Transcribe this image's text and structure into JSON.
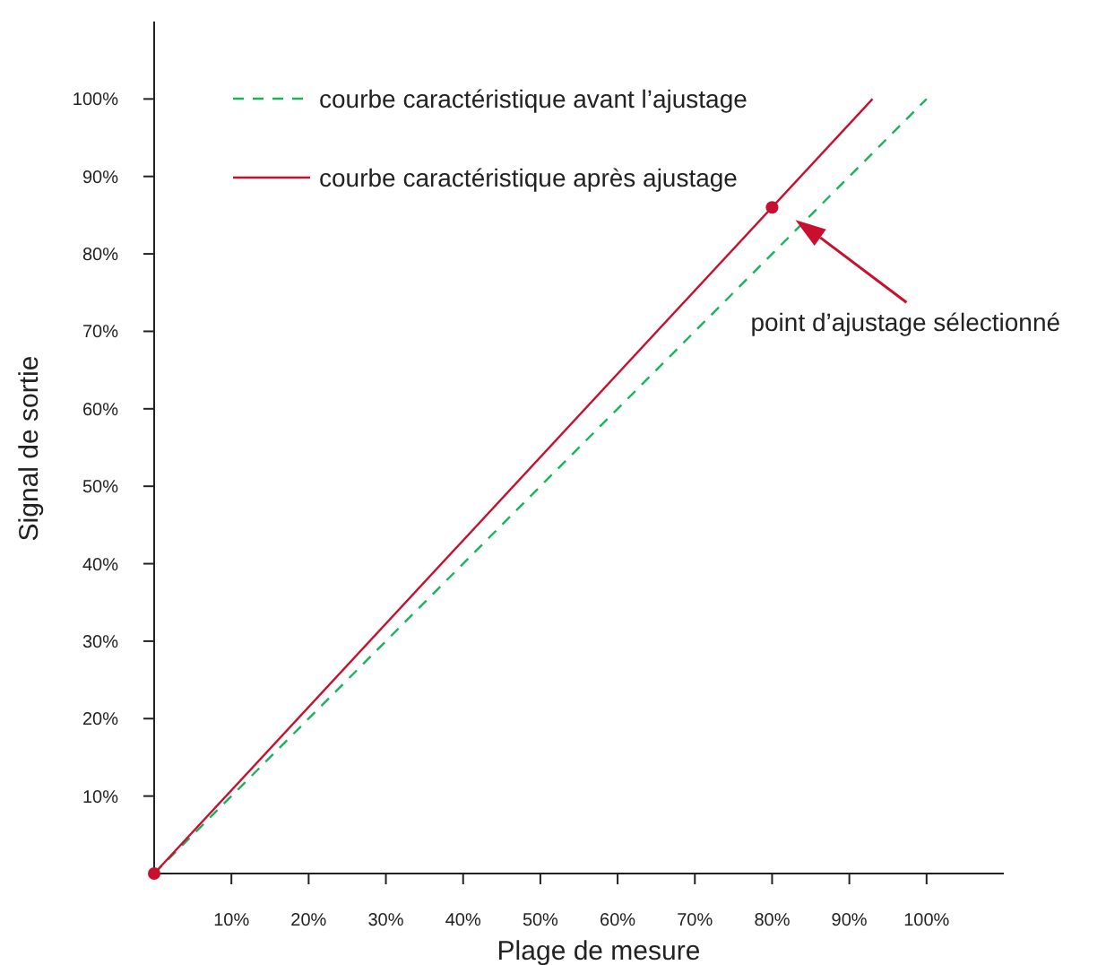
{
  "chart_data": {
    "type": "line",
    "xlabel": "Plage de mesure",
    "ylabel": "Signal de sortie",
    "xlim": [
      0,
      110
    ],
    "ylim": [
      0,
      110
    ],
    "xticks": [
      {
        "value": 10,
        "label": "10%"
      },
      {
        "value": 20,
        "label": "20%"
      },
      {
        "value": 30,
        "label": "30%"
      },
      {
        "value": 40,
        "label": "40%"
      },
      {
        "value": 50,
        "label": "50%"
      },
      {
        "value": 60,
        "label": "60%"
      },
      {
        "value": 70,
        "label": "70%"
      },
      {
        "value": 80,
        "label": "80%"
      },
      {
        "value": 90,
        "label": "90%"
      },
      {
        "value": 100,
        "label": "100%"
      }
    ],
    "yticks": [
      {
        "value": 10,
        "label": "10%"
      },
      {
        "value": 20,
        "label": "20%"
      },
      {
        "value": 30,
        "label": "30%"
      },
      {
        "value": 40,
        "label": "40%"
      },
      {
        "value": 50,
        "label": "50%"
      },
      {
        "value": 60,
        "label": "60%"
      },
      {
        "value": 70,
        "label": "70%"
      },
      {
        "value": 80,
        "label": "80%"
      },
      {
        "value": 90,
        "label": "90%"
      },
      {
        "value": 100,
        "label": "100%"
      }
    ],
    "grid": false,
    "legend": "top left",
    "series": [
      {
        "name": "courbe caractéristique avant l’ajustage",
        "color": "#19b35a",
        "x": [
          0,
          100
        ],
        "values": [
          0,
          100
        ],
        "line_style": "dashed",
        "marker": "none"
      },
      {
        "name": "courbe caractéristique après ajustage",
        "color": "#c8102e",
        "x": [
          0,
          93
        ],
        "values": [
          0,
          100
        ],
        "line_style": "solid",
        "marker": "none"
      },
      {
        "type": "scatter",
        "color": "#c8102e",
        "x": [
          0,
          80
        ],
        "values": [
          0,
          86
        ],
        "marker": "circle"
      }
    ],
    "annotations": [
      "point d’ajustage sélectionné"
    ]
  }
}
